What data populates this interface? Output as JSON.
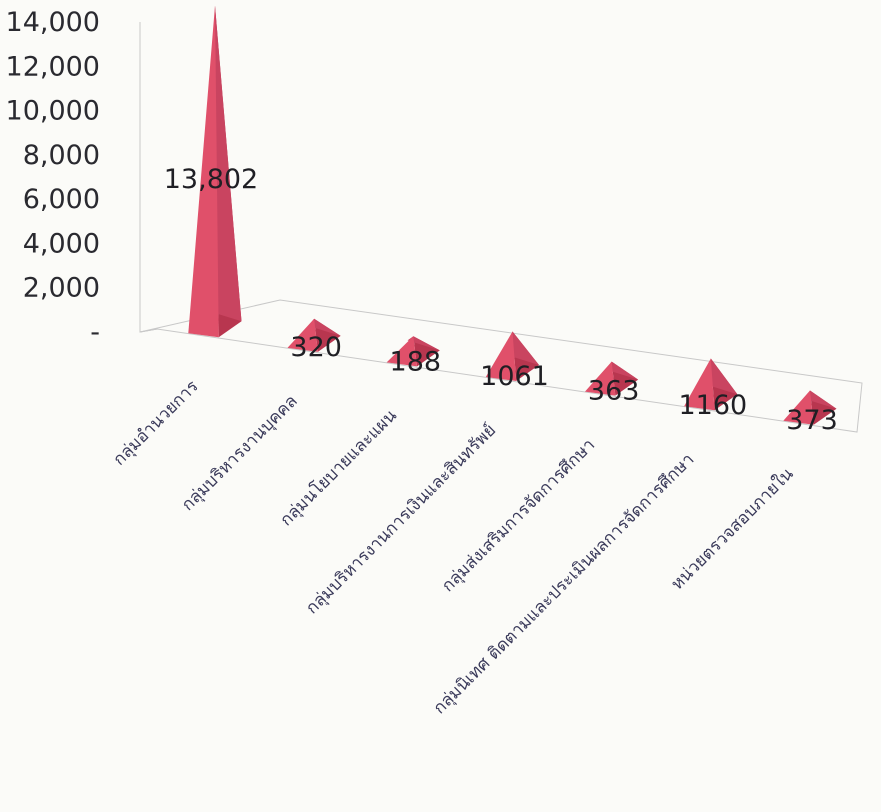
{
  "chart_data": {
    "type": "bar",
    "style": "3d-pyramid",
    "categories": [
      "กลุ่มอำนวยการ",
      "กลุ่มบริหารงานบุคคล",
      "กลุ่มนโยบายและแผน",
      "กลุ่มบริหารงานการเงินและสินทรัพย์",
      "กลุ่มส่งเสริมการจัดการศึกษา",
      "กลุ่มนิเทศ ติดตามและประเมินผลการจัดการศึกษา",
      "หน่วยตรวจสอบภายใน"
    ],
    "values": [
      13802,
      320,
      188,
      1061,
      363,
      1160,
      373
    ],
    "data_labels": [
      "13,802",
      "320",
      "188",
      "1061",
      "363",
      "1160",
      "373"
    ],
    "y_ticks": [
      "-",
      "2,000",
      "4,000",
      "6,000",
      "8,000",
      "10,000",
      "12,000",
      "14,000"
    ],
    "ylim": [
      0,
      14000
    ],
    "grid": false,
    "legend": "none",
    "bar_color": "#e0506a"
  }
}
